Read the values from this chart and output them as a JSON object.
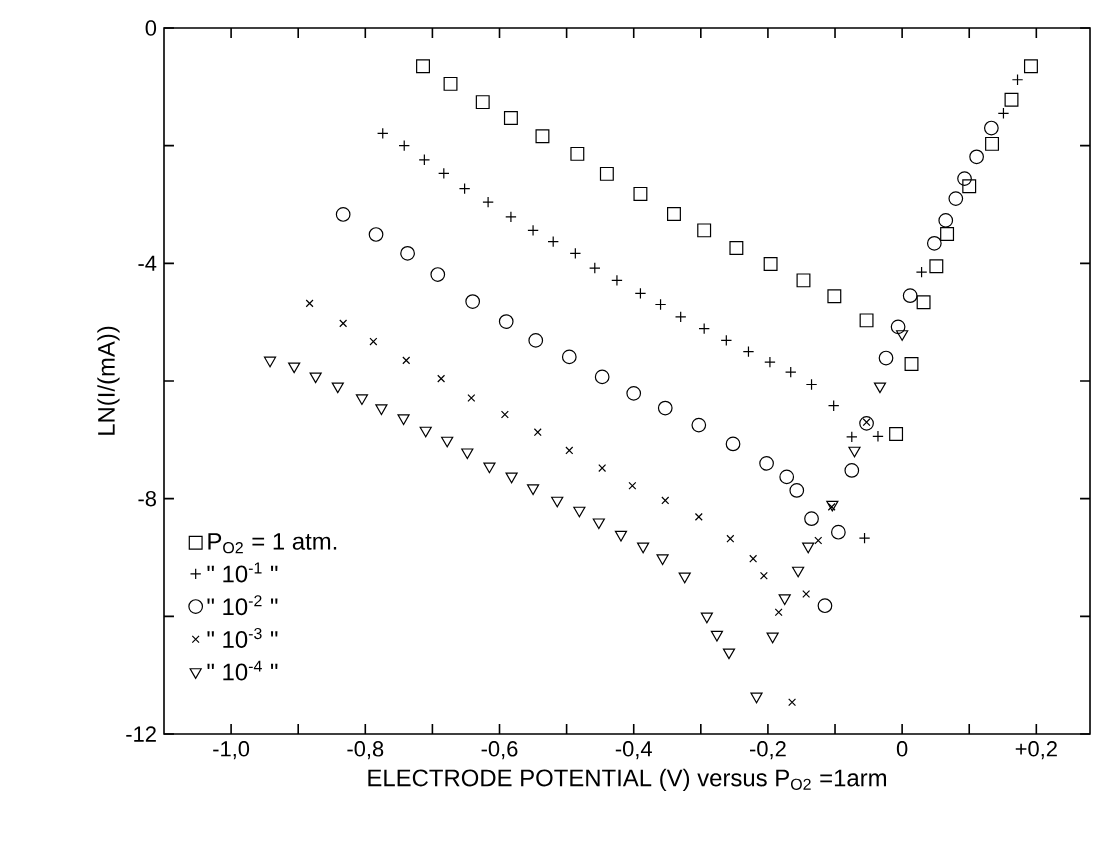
{
  "chart_data": {
    "type": "scatter",
    "xlabel": "ELECTRODE POTENTIAL (V) versus P$_{O2}$ =1arm",
    "ylabel": "LN(I/(mA))",
    "xlim": [
      -1.1,
      0.28
    ],
    "ylim": [
      -12,
      0
    ],
    "xticks": [
      {
        "value": -1.0,
        "label": "-1,0"
      },
      {
        "value": -0.9,
        "label": null
      },
      {
        "value": -0.8,
        "label": "-0,8"
      },
      {
        "value": -0.7,
        "label": null
      },
      {
        "value": -0.6,
        "label": "-0,6"
      },
      {
        "value": -0.5,
        "label": null
      },
      {
        "value": -0.4,
        "label": "-0,4"
      },
      {
        "value": -0.3,
        "label": null
      },
      {
        "value": -0.2,
        "label": "-0,2"
      },
      {
        "value": -0.1,
        "label": null
      },
      {
        "value": 0,
        "label": "0"
      },
      {
        "value": 0.1,
        "label": null
      },
      {
        "value": 0.2,
        "label": "+0,2"
      }
    ],
    "yticks": [
      {
        "value": -12,
        "label": "-12"
      },
      {
        "value": -10,
        "label": null
      },
      {
        "value": -8,
        "label": "-8"
      },
      {
        "value": -6,
        "label": null
      },
      {
        "value": -4,
        "label": "-4"
      },
      {
        "value": -2,
        "label": null
      },
      {
        "value": 0,
        "label": "0"
      }
    ],
    "grid": false,
    "legend": "bottom left",
    "series": [
      {
        "name": "P$_{O2}$ = 1 atm.",
        "color": "#000000",
        "marker": "square",
        "x": [
          -0.714,
          -0.673,
          -0.625,
          -0.583,
          -0.536,
          -0.484,
          -0.44,
          -0.39,
          -0.34,
          -0.295,
          -0.247,
          -0.196,
          -0.147,
          -0.101,
          -0.053,
          -0.009,
          0.014,
          0.032,
          0.051,
          0.067,
          0.1,
          0.134,
          0.163,
          0.192
        ],
        "values": [
          -0.65,
          -0.95,
          -1.26,
          -1.53,
          -1.84,
          -2.14,
          -2.48,
          -2.82,
          -3.16,
          -3.44,
          -3.74,
          -4.01,
          -4.29,
          -4.56,
          -4.97,
          -6.9,
          -5.71,
          -4.66,
          -4.05,
          -3.5,
          -2.69,
          -1.97,
          -1.22,
          -0.65
        ]
      },
      {
        "name": "\" 10$^{-1}$ \"",
        "color": "#000000",
        "marker": "plus",
        "x": [
          -0.774,
          -0.742,
          -0.712,
          -0.683,
          -0.652,
          -0.617,
          -0.583,
          -0.55,
          -0.52,
          -0.487,
          -0.458,
          -0.425,
          -0.39,
          -0.36,
          -0.33,
          -0.295,
          -0.262,
          -0.229,
          -0.197,
          -0.166,
          -0.135,
          -0.102,
          -0.075,
          -0.056,
          -0.036,
          0.029,
          0.151,
          0.172
        ],
        "values": [
          -1.79,
          -2.0,
          -2.24,
          -2.47,
          -2.73,
          -2.96,
          -3.21,
          -3.44,
          -3.63,
          -3.83,
          -4.08,
          -4.29,
          -4.51,
          -4.7,
          -4.91,
          -5.11,
          -5.31,
          -5.5,
          -5.68,
          -5.85,
          -6.06,
          -6.42,
          -6.95,
          -8.67,
          -6.94,
          -4.15,
          -1.45,
          -0.88
        ]
      },
      {
        "name": "\" 10$^{-2}$ \"",
        "color": "#000000",
        "marker": "circle",
        "x": [
          -0.833,
          -0.784,
          -0.737,
          -0.692,
          -0.64,
          -0.59,
          -0.546,
          -0.496,
          -0.447,
          -0.4,
          -0.353,
          -0.303,
          -0.252,
          -0.202,
          -0.172,
          -0.157,
          -0.135,
          -0.115,
          -0.095,
          -0.075,
          -0.053,
          -0.024,
          -0.006,
          0.012,
          0.048,
          0.065,
          0.08,
          0.093,
          0.111,
          0.133
        ],
        "values": [
          -3.17,
          -3.51,
          -3.83,
          -4.19,
          -4.65,
          -4.99,
          -5.31,
          -5.59,
          -5.93,
          -6.21,
          -6.46,
          -6.75,
          -7.07,
          -7.4,
          -7.63,
          -7.86,
          -8.34,
          -9.82,
          -8.57,
          -7.52,
          -6.72,
          -5.61,
          -5.08,
          -4.55,
          -3.66,
          -3.27,
          -2.9,
          -2.56,
          -2.19,
          -1.7
        ]
      },
      {
        "name": "\" 10$^{-3}$ \"",
        "color": "#000000",
        "marker": "cross",
        "x": [
          -0.883,
          -0.833,
          -0.788,
          -0.739,
          -0.687,
          -0.642,
          -0.592,
          -0.543,
          -0.496,
          -0.447,
          -0.402,
          -0.353,
          -0.303,
          -0.256,
          -0.222,
          -0.206,
          -0.184,
          -0.164,
          -0.143,
          -0.125,
          -0.105,
          -0.053
        ],
        "values": [
          -4.68,
          -5.02,
          -5.33,
          -5.65,
          -5.96,
          -6.29,
          -6.57,
          -6.87,
          -7.18,
          -7.48,
          -7.78,
          -8.03,
          -8.31,
          -8.68,
          -9.02,
          -9.31,
          -9.93,
          -11.46,
          -9.62,
          -8.71,
          -8.14,
          -6.7
        ]
      },
      {
        "name": "\" 10$^{-4}$ \"",
        "color": "#000000",
        "marker": "triangle",
        "x": [
          -0.942,
          -0.906,
          -0.874,
          -0.841,
          -0.805,
          -0.776,
          -0.743,
          -0.71,
          -0.678,
          -0.648,
          -0.615,
          -0.582,
          -0.55,
          -0.514,
          -0.481,
          -0.452,
          -0.419,
          -0.386,
          -0.357,
          -0.324,
          -0.291,
          -0.276,
          -0.258,
          -0.217,
          -0.193,
          -0.175,
          -0.155,
          -0.14,
          -0.104,
          -0.071,
          -0.033,
          0.0
        ],
        "values": [
          -5.65,
          -5.75,
          -5.92,
          -6.09,
          -6.29,
          -6.46,
          -6.63,
          -6.84,
          -7.01,
          -7.21,
          -7.45,
          -7.62,
          -7.82,
          -8.03,
          -8.2,
          -8.4,
          -8.61,
          -8.81,
          -9.01,
          -9.32,
          -10.0,
          -10.31,
          -10.61,
          -11.36,
          -10.34,
          -9.69,
          -9.22,
          -8.81,
          -8.1,
          -7.18,
          -6.09,
          -5.2
        ]
      }
    ]
  }
}
